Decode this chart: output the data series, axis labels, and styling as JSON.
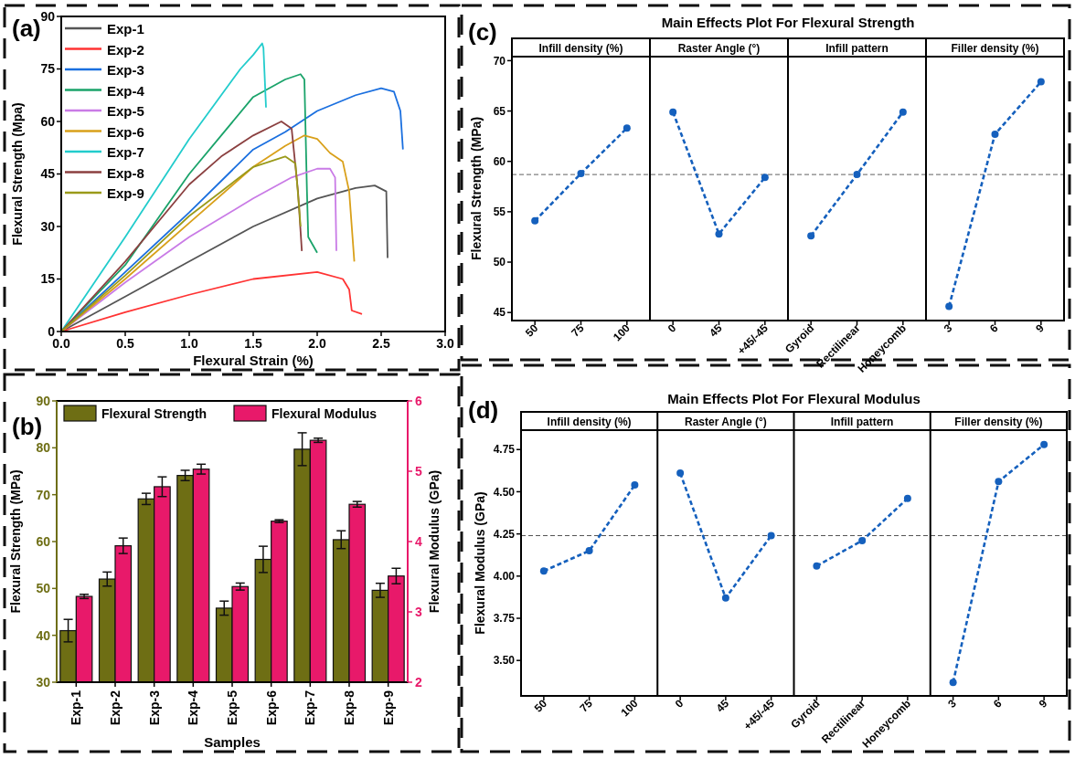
{
  "chart_data": [
    {
      "type": "line",
      "annotations": [
        "(a)"
      ],
      "xlabel": "Flexural Strain (%)",
      "ylabel": "Flexural Strength (Mpa)",
      "xlim": [
        0,
        3
      ],
      "xticks": [
        {
          "value": 0,
          "label": "0.0"
        },
        0.5,
        {
          "value": 1,
          "label": "1.0"
        },
        1.5,
        {
          "value": 2,
          "label": "2.0"
        },
        2.5,
        {
          "value": 3,
          "label": "3.0"
        }
      ],
      "ylim": [
        0,
        90
      ],
      "yticks": [
        0,
        15,
        30,
        45,
        60,
        75,
        90
      ],
      "legend": "top left",
      "series": [
        {
          "name": "Exp-1",
          "color": "#555555",
          "x": [
            0,
            0.5,
            1,
            1.5,
            2,
            2.3,
            2.45,
            2.54,
            2.55
          ],
          "values": [
            0,
            10,
            20,
            30,
            38,
            41,
            41.7,
            40,
            21
          ]
        },
        {
          "name": "Exp-2",
          "color": "#ff3333",
          "x": [
            0,
            0.5,
            1,
            1.5,
            2,
            2.2,
            2.25,
            2.27,
            2.35
          ],
          "values": [
            0,
            5.5,
            10.5,
            15,
            17,
            15,
            12,
            6,
            5
          ]
        },
        {
          "name": "Exp-3",
          "color": "#1a6fdf",
          "x": [
            0,
            0.5,
            1,
            1.5,
            1.75,
            2,
            2.3,
            2.5,
            2.6,
            2.65,
            2.67
          ],
          "values": [
            0,
            17,
            34,
            52,
            57,
            63,
            67.5,
            69.5,
            68.5,
            63,
            52
          ]
        },
        {
          "name": "Exp-4",
          "color": "#1aa36a",
          "x": [
            0,
            0.5,
            1,
            1.5,
            1.75,
            1.87,
            1.9,
            1.92,
            1.93,
            2
          ],
          "values": [
            0,
            19,
            45,
            67,
            72,
            73.5,
            72,
            40,
            27,
            22.5
          ]
        },
        {
          "name": "Exp-5",
          "color": "#c97be6",
          "x": [
            0,
            0.5,
            1,
            1.5,
            1.8,
            2,
            2.1,
            2.14,
            2.15
          ],
          "values": [
            0,
            14,
            27,
            38,
            44,
            46.5,
            46.5,
            44,
            23
          ]
        },
        {
          "name": "Exp-6",
          "color": "#d9a01a",
          "x": [
            0,
            0.5,
            1,
            1.5,
            1.75,
            1.9,
            2,
            2.1,
            2.2,
            2.25,
            2.28,
            2.29
          ],
          "values": [
            0,
            15,
            31,
            47,
            53,
            56,
            55,
            51,
            48.5,
            40,
            25,
            20
          ]
        },
        {
          "name": "Exp-7",
          "color": "#22cccc",
          "x": [
            0,
            0.5,
            1,
            1.4,
            1.5,
            1.57,
            1.58,
            1.6
          ],
          "values": [
            0,
            27,
            55,
            75,
            79,
            82.3,
            81,
            64
          ]
        },
        {
          "name": "Exp-8",
          "color": "#8b4040",
          "x": [
            0,
            0.5,
            1,
            1.25,
            1.5,
            1.72,
            1.8,
            1.85,
            1.88
          ],
          "values": [
            0,
            20,
            42,
            50,
            56,
            60,
            58,
            40,
            23
          ]
        },
        {
          "name": "Exp-9",
          "color": "#9a9a1a",
          "x": [
            0,
            0.5,
            1,
            1.25,
            1.5,
            1.75,
            1.83,
            1.86,
            1.87
          ],
          "values": [
            0,
            16,
            33,
            40,
            47,
            50,
            48,
            35,
            30
          ]
        }
      ]
    },
    {
      "type": "line",
      "title": "Main Effects Plot For Flexural Strength",
      "ylabel": "Flexural Strength (MPa)",
      "annotations": [
        "(c)",
        "Infill density (%)",
        "Raster Angle (°)",
        "Infill pattern",
        "Filler density (%)"
      ],
      "categories": [
        "50",
        "75",
        "100",
        "0",
        "45",
        "+45/-45",
        "Gyroid",
        "Rectilinear",
        "Honeycomb",
        "3",
        "6",
        "9"
      ],
      "marker": "circle",
      "line_style": "dashed",
      "ylim": [
        44.2,
        70.4
      ],
      "yticks": [
        45,
        50,
        55,
        60,
        65,
        70
      ],
      "ref_lines": [
        {
          "axis": "y",
          "value": 58.7,
          "color": "#808080",
          "line_style": "dashed"
        }
      ],
      "series": [
        {
          "color": "#1560bd",
          "values": [
            54.1,
            58.8,
            63.3,
            null,
            null,
            null,
            null,
            null,
            null,
            null,
            null,
            null
          ]
        },
        {
          "color": "#1560bd",
          "values": [
            null,
            null,
            null,
            64.9,
            52.8,
            58.4,
            null,
            null,
            null,
            null,
            null,
            null
          ]
        },
        {
          "color": "#1560bd",
          "values": [
            null,
            null,
            null,
            null,
            null,
            null,
            52.6,
            58.7,
            64.9,
            null,
            null,
            null
          ]
        },
        {
          "color": "#1560bd",
          "values": [
            null,
            null,
            null,
            null,
            null,
            null,
            null,
            null,
            null,
            45.6,
            62.7,
            67.9
          ]
        }
      ]
    },
    {
      "type": "bar",
      "annotations": [
        "(b)"
      ],
      "xlabel": "Samples",
      "ylabel": "Flexural Strength (MPa)",
      "y2label": "Flexural Modulus (GPa)",
      "categories": [
        "Exp-1",
        "Exp-2",
        "Exp-3",
        "Exp-4",
        "Exp-5",
        "Exp-6",
        "Exp-7",
        "Exp-8",
        "Exp-9"
      ],
      "ylim": [
        30,
        90
      ],
      "yticks": [
        30,
        40,
        50,
        60,
        70,
        80,
        90
      ],
      "y2lim": [
        2,
        6
      ],
      "y2ticks": [
        2,
        3,
        4,
        5,
        6
      ],
      "legend": "top",
      "series": [
        {
          "name": "Flexural Strength",
          "color": "#6e6e14",
          "values": [
            41.0,
            52.0,
            69.1,
            74.1,
            45.8,
            56.2,
            79.7,
            60.4,
            49.6
          ],
          "errors": [
            2.4,
            1.5,
            1.2,
            1.1,
            1.5,
            2.8,
            3.5,
            1.9,
            1.5
          ]
        },
        {
          "name": "Flexural Modulus",
          "color": "#e8196a",
          "axis": "y2",
          "values": [
            3.22,
            3.94,
            4.78,
            5.03,
            3.36,
            4.29,
            5.44,
            4.53,
            3.51
          ],
          "errors": [
            0.03,
            0.11,
            0.14,
            0.07,
            0.05,
            0.02,
            0.03,
            0.04,
            0.11
          ]
        }
      ]
    },
    {
      "type": "line",
      "title": "Main Effects Plot For Flexural Modulus",
      "ylabel": "Flexural Modulus (GPa)",
      "annotations": [
        "(d)",
        "Infill density (%)",
        "Raster Angle (°)",
        "Infill pattern",
        "Filler density (%)"
      ],
      "categories": [
        "50",
        "75",
        "100",
        "0",
        "45",
        "+45/-45",
        "Gyroid",
        "Rectilinear",
        "Honeycomb",
        "3",
        "6",
        "9"
      ],
      "marker": "circle",
      "line_style": "dashed",
      "ylim": [
        3.29,
        4.865
      ],
      "yticks": [
        {
          "value": 3.5,
          "label": "3.50"
        },
        3.75,
        {
          "value": 4,
          "label": "4.00"
        },
        4.25,
        {
          "value": 4.5,
          "label": "4.50"
        },
        4.75
      ],
      "ref_lines": [
        {
          "axis": "y",
          "value": 4.24,
          "color": "#555555",
          "line_style": "dashed"
        }
      ],
      "series": [
        {
          "color": "#1560bd",
          "values": [
            4.03,
            4.15,
            4.54,
            null,
            null,
            null,
            null,
            null,
            null,
            null,
            null,
            null
          ]
        },
        {
          "color": "#1560bd",
          "values": [
            null,
            null,
            null,
            4.61,
            3.87,
            4.24,
            null,
            null,
            null,
            null,
            null,
            null
          ]
        },
        {
          "color": "#1560bd",
          "values": [
            null,
            null,
            null,
            null,
            null,
            null,
            4.06,
            4.21,
            4.46,
            null,
            null,
            null
          ]
        },
        {
          "color": "#1560bd",
          "values": [
            null,
            null,
            null,
            null,
            null,
            null,
            null,
            null,
            null,
            3.37,
            4.56,
            4.78
          ]
        }
      ]
    }
  ]
}
